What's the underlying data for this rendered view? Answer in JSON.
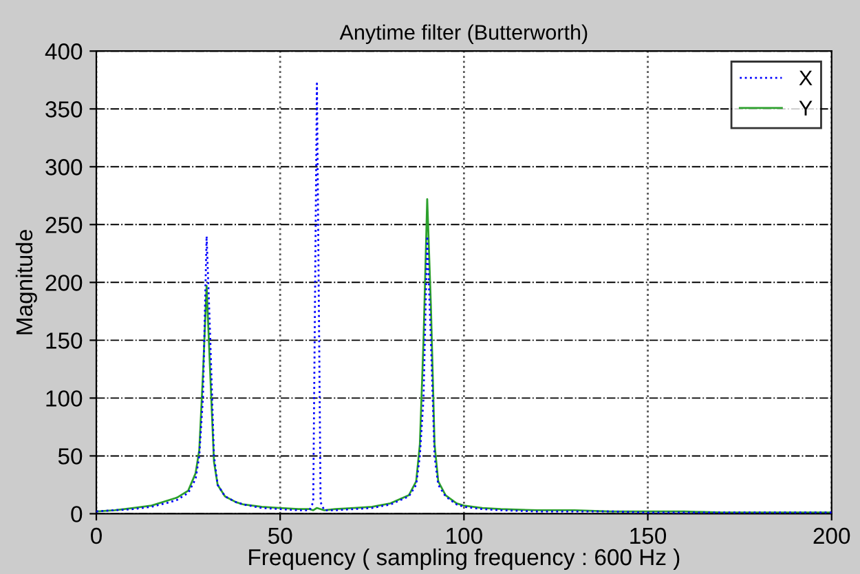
{
  "chart_data": {
    "type": "line",
    "title": "Anytime filter (Butterworth)",
    "xlabel": "Frequency ( sampling frequency : 600 Hz )",
    "ylabel": "Magnitude",
    "x": [
      0,
      5,
      10,
      15,
      20,
      22,
      25,
      27,
      28,
      29,
      30,
      31,
      32,
      33,
      35,
      38,
      40,
      45,
      50,
      55,
      58,
      59,
      60,
      61,
      62,
      65,
      70,
      75,
      80,
      85,
      87,
      88,
      89,
      90,
      91,
      92,
      93,
      95,
      98,
      100,
      105,
      110,
      120,
      130,
      140,
      150,
      160,
      170,
      180,
      190,
      200
    ],
    "series": [
      {
        "name": "X",
        "color": "#0000ff",
        "line_style": "dotted",
        "values": [
          2,
          3,
          4,
          6,
          10,
          12,
          18,
          30,
          50,
          100,
          240,
          150,
          50,
          25,
          15,
          10,
          8,
          5,
          4,
          3,
          3,
          10,
          372,
          10,
          3,
          3,
          4,
          5,
          8,
          15,
          25,
          50,
          100,
          240,
          150,
          50,
          25,
          15,
          8,
          6,
          4,
          3,
          2,
          2,
          2,
          1,
          1,
          1,
          1,
          1,
          1
        ]
      },
      {
        "name": "Y",
        "color": "#2ca02c",
        "line_style": "solid",
        "values": [
          2,
          3,
          5,
          7,
          12,
          14,
          20,
          35,
          55,
          120,
          197,
          120,
          45,
          25,
          15,
          10,
          8,
          6,
          5,
          4,
          4,
          3,
          5,
          4,
          3,
          4,
          5,
          6,
          9,
          16,
          28,
          60,
          150,
          272,
          180,
          60,
          28,
          16,
          9,
          7,
          5,
          4,
          3,
          3,
          2,
          2,
          2,
          1,
          1,
          1,
          1
        ]
      }
    ],
    "xlim": [
      0,
      200
    ],
    "xticks": [
      0,
      50,
      100,
      150,
      200
    ],
    "ylim": [
      0,
      400
    ],
    "yticks": [
      0,
      50,
      100,
      150,
      200,
      250,
      300,
      350,
      400
    ],
    "grid": true,
    "legend": "top right",
    "marker": "none"
  }
}
